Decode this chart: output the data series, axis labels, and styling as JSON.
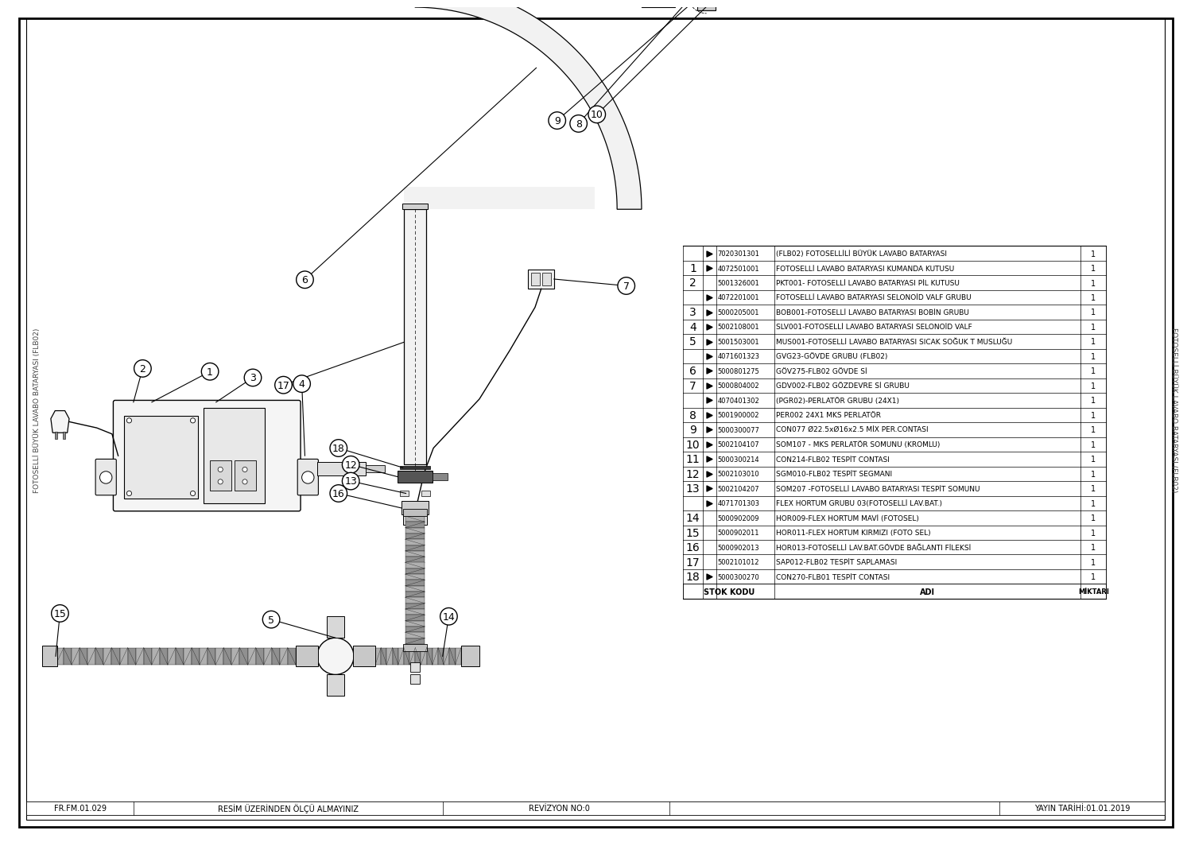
{
  "bg_color": "#ffffff",
  "line_color": "#000000",
  "table_rows": [
    {
      "num": "",
      "arrow": true,
      "code": "7020301301",
      "name": "(FLB02) FOTOSELLİLİ BÜYÜK LAVABO BATARYASI",
      "qty": "1"
    },
    {
      "num": "1",
      "arrow": true,
      "code": "4072501001",
      "name": "FOTOSELLİ LAVABO BATARYASI KUMANDA KUTUSU",
      "qty": "1"
    },
    {
      "num": "2",
      "arrow": false,
      "code": "5001326001",
      "name": "PKT001- FOTOSELLİ LAVABO BATARYASI PİL KUTUSU",
      "qty": "1"
    },
    {
      "num": "",
      "arrow": true,
      "code": "4072201001",
      "name": "FOTOSELLİ LAVABO BATARYASI SELONOİD VALF GRUBU",
      "qty": "1"
    },
    {
      "num": "3",
      "arrow": true,
      "code": "5000205001",
      "name": "BOB001-FOTOSELLİ LAVABO BATARYASI BOBİN GRUBU",
      "qty": "1"
    },
    {
      "num": "4",
      "arrow": true,
      "code": "5002108001",
      "name": "SLV001-FOTOSELLİ LAVABO BATARYASI SELONOİD VALF",
      "qty": "1"
    },
    {
      "num": "5",
      "arrow": true,
      "code": "5001503001",
      "name": "MUS001-FOTOSELLİ LAVABO BATARYASI SICAK SOĞUK T MUSLUĞU",
      "qty": "1"
    },
    {
      "num": "",
      "arrow": true,
      "code": "4071601323",
      "name": "GVG23-GÖVDE GRUBU (FLB02)",
      "qty": "1"
    },
    {
      "num": "6",
      "arrow": true,
      "code": "5000801275",
      "name": "GÖV275-FLB02 GÖVDE Sİ",
      "qty": "1"
    },
    {
      "num": "7",
      "arrow": true,
      "code": "5000804002",
      "name": "GDV002-FLB02 GÖZDEVRE Sİ GRUBU",
      "qty": "1"
    },
    {
      "num": "",
      "arrow": true,
      "code": "4070401302",
      "name": "(PGR02)-PERLATÖR GRUBU (24X1)",
      "qty": "1"
    },
    {
      "num": "8",
      "arrow": true,
      "code": "5001900002",
      "name": "PER002 24X1 MKS PERLATÖR",
      "qty": "1"
    },
    {
      "num": "9",
      "arrow": true,
      "code": "5000300077",
      "name": "CON077 Ø22.5xØ16x2.5 MİX PER.CONTASI",
      "qty": "1"
    },
    {
      "num": "10",
      "arrow": true,
      "code": "5002104107",
      "name": "SOM107 - MKS PERLATÖR SOMUNU (KROMLU)",
      "qty": "1"
    },
    {
      "num": "11",
      "arrow": true,
      "code": "5000300214",
      "name": "CON214-FLB02 TESPİT CONTASI",
      "qty": "1"
    },
    {
      "num": "12",
      "arrow": true,
      "code": "5002103010",
      "name": "SGM010-FLB02 TESPİT SEGMANI",
      "qty": "1"
    },
    {
      "num": "13",
      "arrow": true,
      "code": "5002104207",
      "name": "SOM207 -FOTOSELLİ LAVABO BATARYASI TESPİT SOMUNU",
      "qty": "1"
    },
    {
      "num": "",
      "arrow": true,
      "code": "4071701303",
      "name": "FLEX HORTUM GRUBU 03(FOTOSELLİ LAV.BAT.)",
      "qty": "1"
    },
    {
      "num": "14",
      "arrow": false,
      "code": "5000902009",
      "name": "HOR009-FLEX HORTUM MAVİ (FOTOSEL)",
      "qty": "1"
    },
    {
      "num": "15",
      "arrow": false,
      "code": "5000902011",
      "name": "HOR011-FLEX HORTUM KIRMIZI (FOTO SEL)",
      "qty": "1"
    },
    {
      "num": "16",
      "arrow": false,
      "code": "5000902013",
      "name": "HOR013-FOTOSELLİ LAV.BAT.GÖVDE BAĞLANTI FİLEKSİ",
      "qty": "1"
    },
    {
      "num": "17",
      "arrow": false,
      "code": "5002101012",
      "name": "SAP012-FLB02 TESPİT SAPLAMASI",
      "qty": "1"
    },
    {
      "num": "18",
      "arrow": true,
      "code": "5000300270",
      "name": "CON270-FLB01 TESPİT CONTASI",
      "qty": "1"
    }
  ],
  "footer_left": "FR.FM.01.029",
  "footer_mid": "RESİM ÜZERİNDEN ÖLÇÜ ALMAYINIZ",
  "footer_rev": "REVİZYON NO:0",
  "footer_right": "YAYIN TARİHİ:01.01.2019",
  "side_text": "FOTOSELLİ BÜYÜK LAVABO BATARYASI (FLB02)"
}
